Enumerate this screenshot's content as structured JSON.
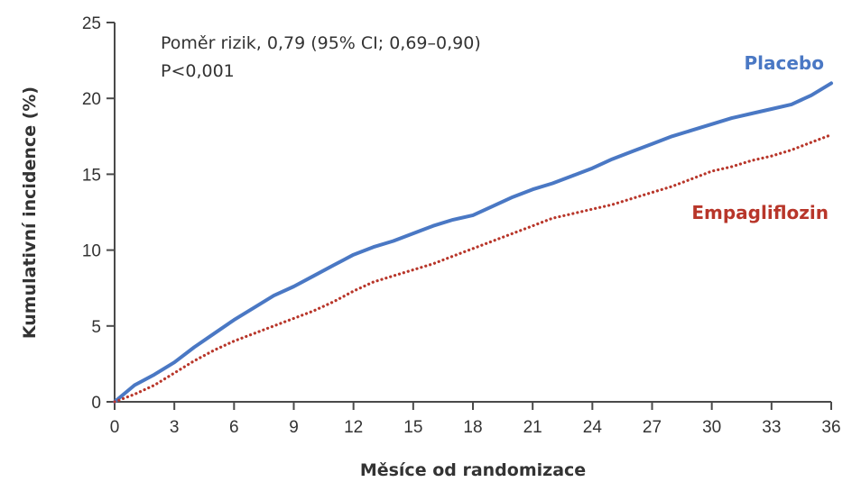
{
  "chart_data": {
    "type": "line",
    "xlabel": "Měsíce od randomizace",
    "ylabel": "Kumulativní incidence (%)",
    "xlim": [
      0,
      36
    ],
    "ylim": [
      0,
      25
    ],
    "xticks": [
      "0",
      "3",
      "6",
      "9",
      "12",
      "15",
      "18",
      "21",
      "24",
      "27",
      "30",
      "33",
      "36"
    ],
    "yticks": [
      "0",
      "5",
      "10",
      "15",
      "20",
      "25"
    ],
    "grid": false,
    "annotations": {
      "hazard_ratio": "Poměr rizik, 0,79 (95% CI; 0,69–0,90)",
      "p_value": "P<0,001"
    },
    "series": [
      {
        "name": "Placebo",
        "color": "#4a78c4",
        "style": "solid",
        "x": [
          0,
          1,
          2,
          3,
          4,
          5,
          6,
          7,
          8,
          9,
          10,
          11,
          12,
          13,
          14,
          15,
          16,
          17,
          18,
          19,
          20,
          21,
          22,
          23,
          24,
          25,
          26,
          27,
          28,
          29,
          30,
          31,
          32,
          33,
          34,
          35,
          36
        ],
        "y": [
          0,
          1.1,
          1.8,
          2.6,
          3.6,
          4.5,
          5.4,
          6.2,
          7.0,
          7.6,
          8.3,
          9.0,
          9.7,
          10.2,
          10.6,
          11.1,
          11.6,
          12.0,
          12.3,
          12.9,
          13.5,
          14.0,
          14.4,
          14.9,
          15.4,
          16.0,
          16.5,
          17.0,
          17.5,
          17.9,
          18.3,
          18.7,
          19.0,
          19.3,
          19.6,
          20.2,
          21.0
        ]
      },
      {
        "name": "Empagliflozin",
        "color": "#b8362a",
        "style": "dotted",
        "x": [
          0,
          1,
          2,
          3,
          4,
          5,
          6,
          7,
          8,
          9,
          10,
          11,
          12,
          13,
          14,
          15,
          16,
          17,
          18,
          19,
          20,
          21,
          22,
          23,
          24,
          25,
          26,
          27,
          28,
          29,
          30,
          31,
          32,
          33,
          34,
          35,
          36
        ],
        "y": [
          0,
          0.5,
          1.1,
          1.9,
          2.7,
          3.4,
          4.0,
          4.5,
          5.0,
          5.5,
          6.0,
          6.6,
          7.3,
          7.9,
          8.3,
          8.7,
          9.1,
          9.6,
          10.1,
          10.6,
          11.1,
          11.6,
          12.1,
          12.4,
          12.7,
          13.0,
          13.4,
          13.8,
          14.2,
          14.7,
          15.2,
          15.5,
          15.9,
          16.2,
          16.6,
          17.1,
          17.6
        ]
      }
    ]
  }
}
